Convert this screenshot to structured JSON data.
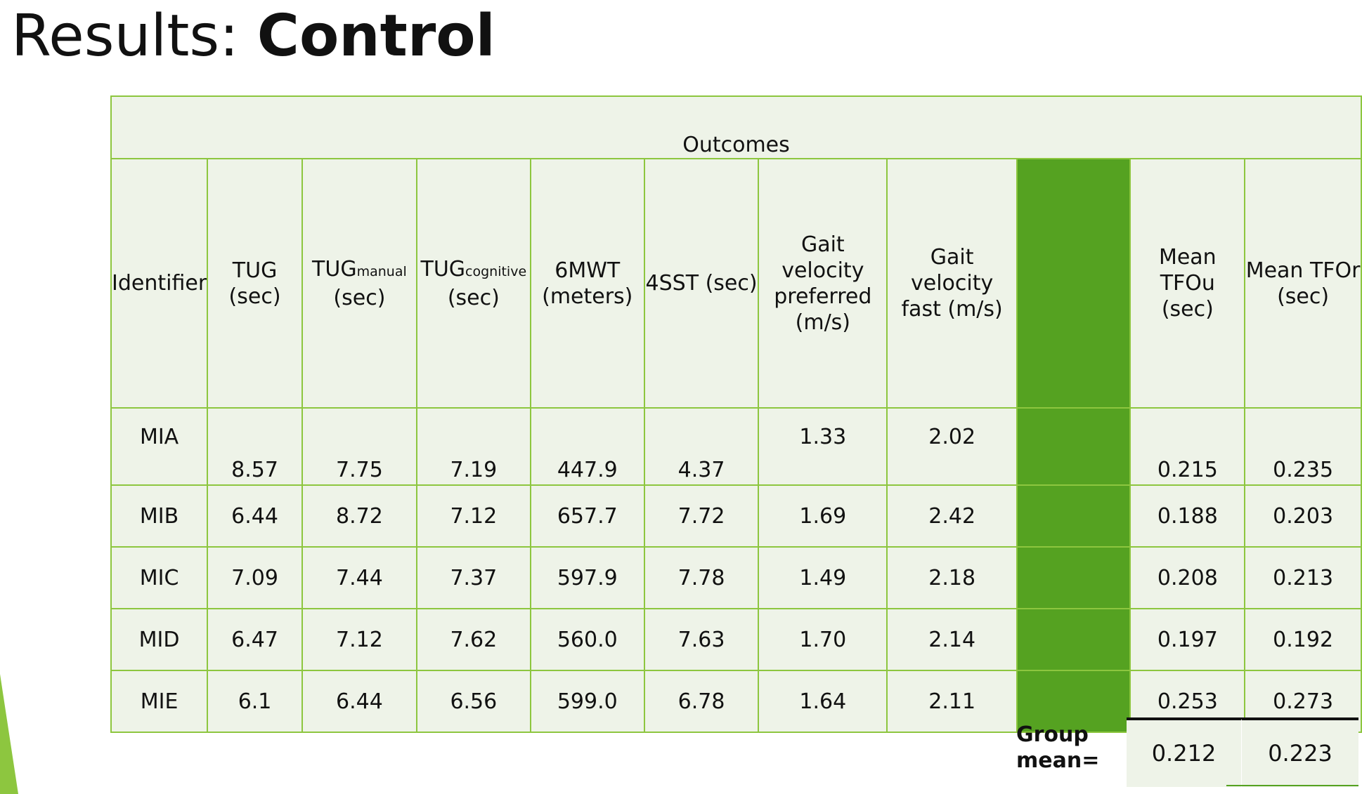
{
  "title": {
    "prefix": "Results: ",
    "main": "Control"
  },
  "table": {
    "banner": "Outcomes",
    "headers": {
      "identifier": "Identifier",
      "tug": {
        "line1": "TUG",
        "line2": "(sec)"
      },
      "tug_manual": {
        "base": "TUG",
        "sub": "manual",
        "line2": "(sec)"
      },
      "tug_cognitive": {
        "base": "TUG",
        "sub": "cognitive",
        "line2": "(sec)"
      },
      "six_mwt": {
        "line1": "6MWT",
        "line2": "(meters)"
      },
      "four_sst": "4SST (sec)",
      "gait_preferred": {
        "line1": "Gait velocity",
        "line2": "preferred",
        "line3": "(m/s)"
      },
      "gait_fast": {
        "line1": "Gait velocity",
        "line2": "fast (m/s)"
      },
      "mean_tfou": {
        "line1": "Mean TFOu",
        "line2": "(sec)"
      },
      "mean_tfor": {
        "line1": "Mean TFOr",
        "line2": "(sec)"
      }
    },
    "rows": [
      {
        "id": "MIA",
        "tug": "8.57",
        "tug_manual": "7.75",
        "tug_cognitive": "7.19",
        "six_mwt": "447.9",
        "four_sst": "4.37",
        "gait_preferred": "1.33",
        "gait_fast": "2.02",
        "mean_tfou": "0.215",
        "mean_tfor": "0.235"
      },
      {
        "id": "MIB",
        "tug": "6.44",
        "tug_manual": "8.72",
        "tug_cognitive": "7.12",
        "six_mwt": "657.7",
        "four_sst": "7.72",
        "gait_preferred": "1.69",
        "gait_fast": "2.42",
        "mean_tfou": "0.188",
        "mean_tfor": "0.203"
      },
      {
        "id": "MIC",
        "tug": "7.09",
        "tug_manual": "7.44",
        "tug_cognitive": "7.37",
        "six_mwt": "597.9",
        "four_sst": "7.78",
        "gait_preferred": "1.49",
        "gait_fast": "2.18",
        "mean_tfou": "0.208",
        "mean_tfor": "0.213"
      },
      {
        "id": "MID",
        "tug": "6.47",
        "tug_manual": "7.12",
        "tug_cognitive": "7.62",
        "six_mwt": "560.0",
        "four_sst": "7.63",
        "gait_preferred": "1.70",
        "gait_fast": "2.14",
        "mean_tfou": "0.197",
        "mean_tfor": "0.192"
      },
      {
        "id": "MIE",
        "tug": "6.1",
        "tug_manual": "6.44",
        "tug_cognitive": "6.56",
        "six_mwt": "599.0",
        "four_sst": "6.78",
        "gait_preferred": "1.64",
        "gait_fast": "2.11",
        "mean_tfou": "0.253",
        "mean_tfor": "0.273"
      }
    ]
  },
  "group_mean": {
    "label_line1": "Group",
    "label_line2": "mean=",
    "tfou": "0.212",
    "tfor": "0.223"
  },
  "colors": {
    "border_green": "#8dc63f",
    "spacer_green": "#55a221",
    "cell_background": "#eef3e8",
    "text": "#111111"
  }
}
